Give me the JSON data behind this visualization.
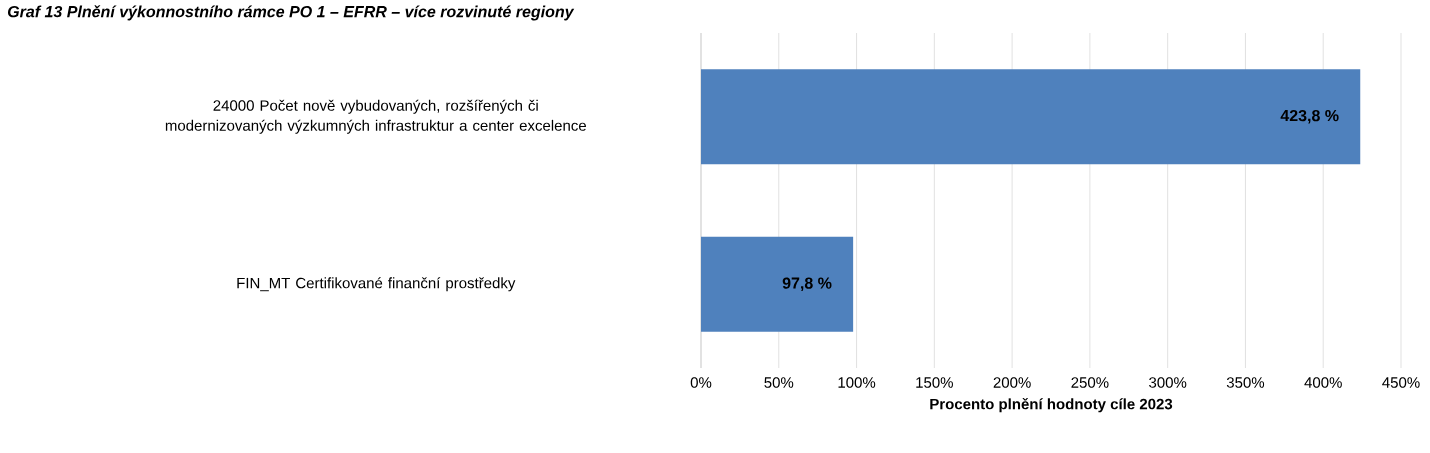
{
  "chart_data": {
    "type": "bar",
    "orientation": "horizontal",
    "title": "Graf 13 Plnění výkonnostního rámce PO 1 – EFRR – více rozvinuté regiony",
    "categories": [
      "24000 Počet nově vybudovaných, rozšířených či modernizovaných výzkumných infrastruktur a center excelence",
      "FIN_MT Certifikované finanční prostředky"
    ],
    "values": [
      423.8,
      97.8
    ],
    "value_labels": [
      "423,8 %",
      "97,8 %"
    ],
    "color": "#4f81bd",
    "xlabel": "Procento plnění hodnoty cíle 2023",
    "xlim": [
      0,
      450
    ],
    "xticks": [
      {
        "value": 0,
        "label": "0%"
      },
      {
        "value": 50,
        "label": "50%"
      },
      {
        "value": 100,
        "label": "100%"
      },
      {
        "value": 150,
        "label": "150%"
      },
      {
        "value": 200,
        "label": "200%"
      },
      {
        "value": 250,
        "label": "250%"
      },
      {
        "value": 300,
        "label": "300%"
      },
      {
        "value": 350,
        "label": "350%"
      },
      {
        "value": 400,
        "label": "400%"
      },
      {
        "value": 450,
        "label": "450%"
      }
    ],
    "grid": "x"
  }
}
